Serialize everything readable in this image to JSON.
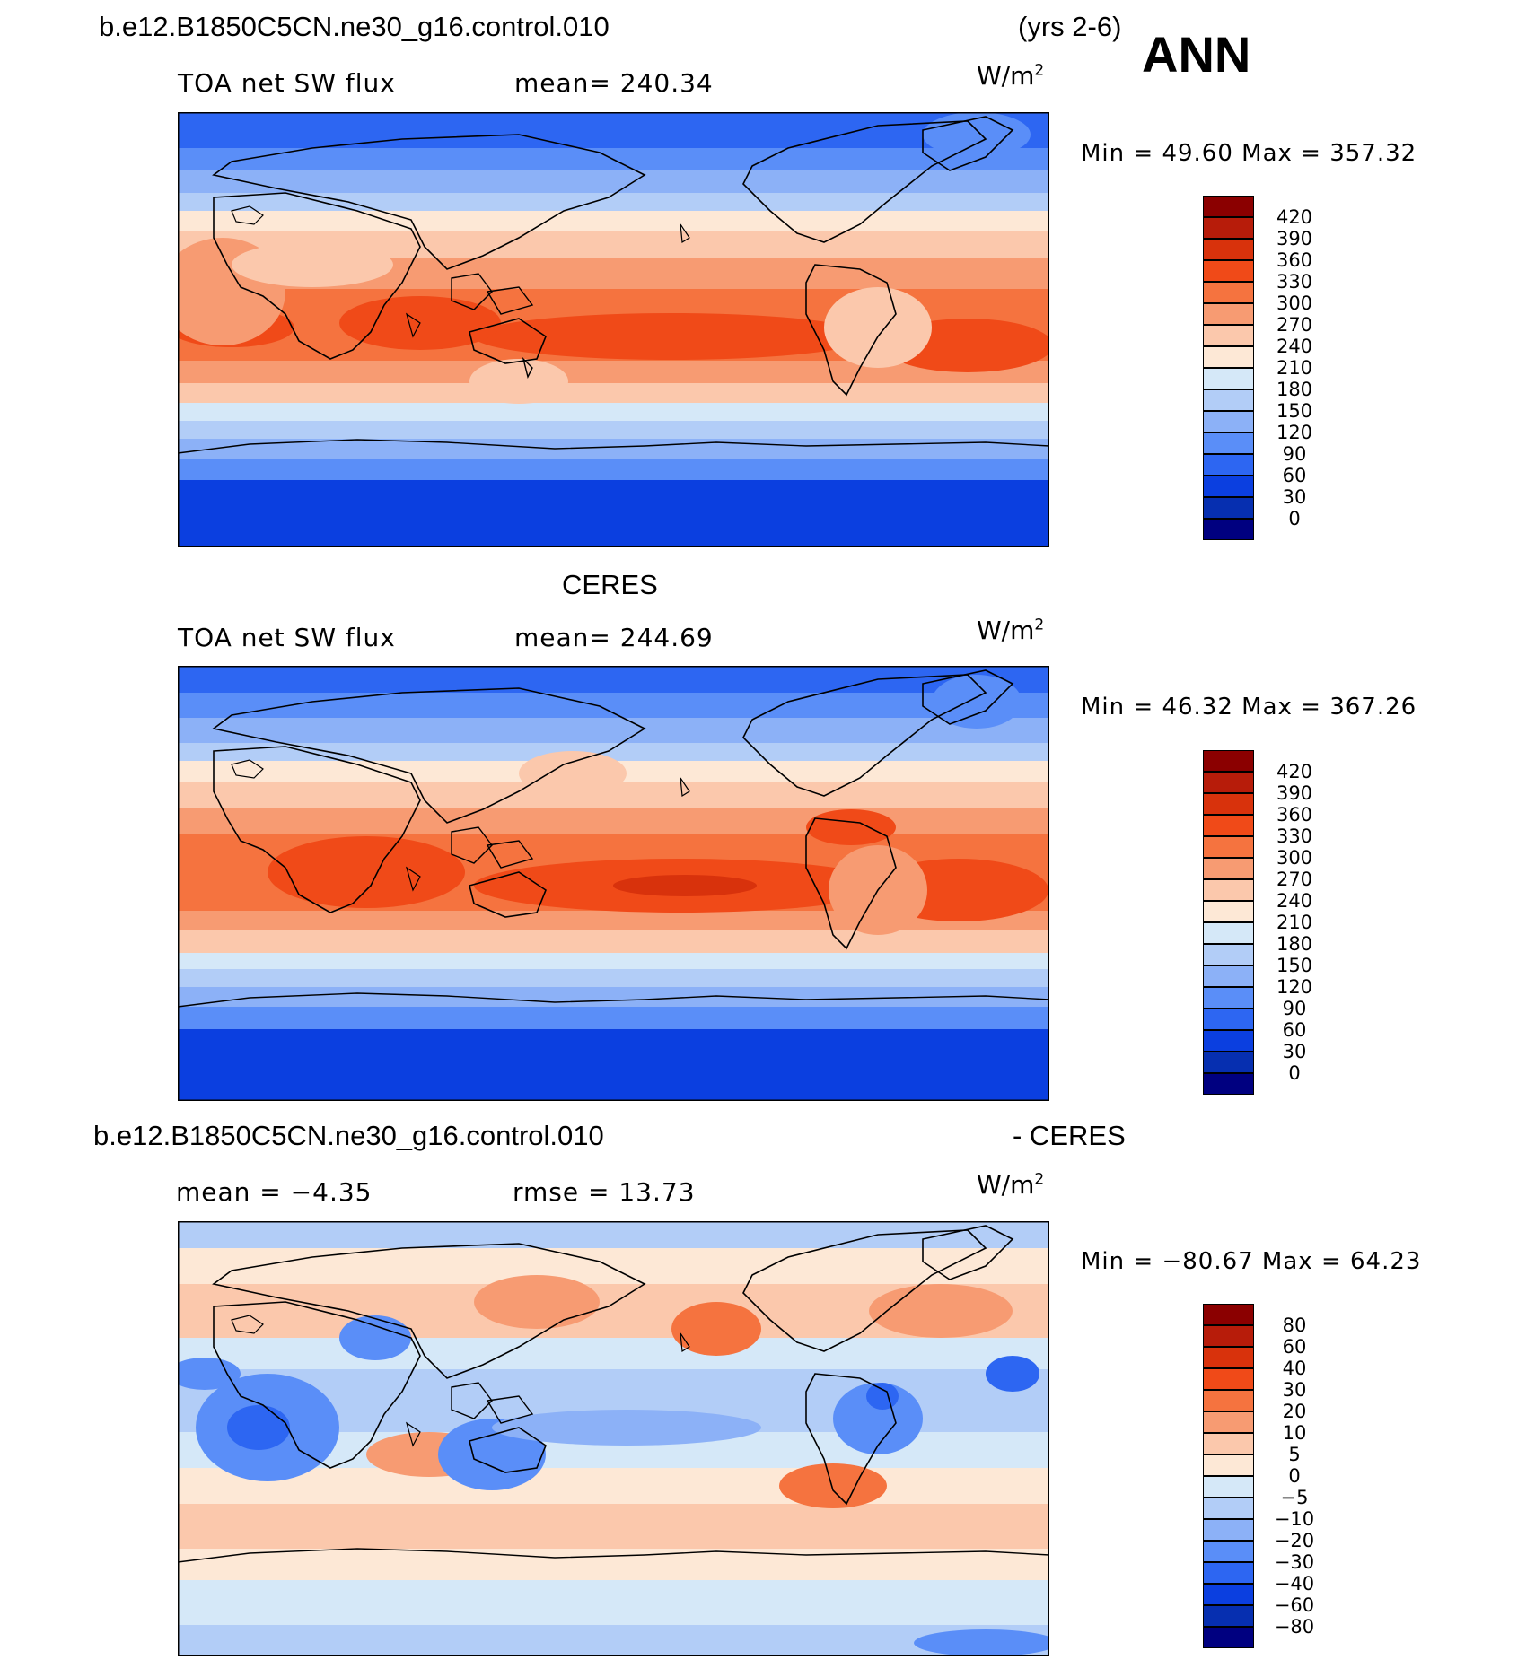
{
  "header": {
    "case": "b.e12.B1850C5CN.ne30_g16.control.010",
    "years": "(yrs 2-6)",
    "season": "ANN"
  },
  "panels": [
    {
      "id": "model",
      "title": "",
      "left_label": "TOA net SW flux",
      "mid_label": "mean= 240.34",
      "units": "W/m",
      "units_sup": "2",
      "minmax": "Min =   49.60 Max =  357.32",
      "levels": [
        "420",
        "390",
        "360",
        "330",
        "300",
        "270",
        "240",
        "210",
        "180",
        "150",
        "120",
        "90",
        "60",
        "30",
        "0"
      ],
      "colors": [
        "#8b0000",
        "#b71c0a",
        "#d8320c",
        "#f04a18",
        "#f5733f",
        "#f79b72",
        "#fbc8ac",
        "#fde8d6",
        "#d5e8f8",
        "#b2cdf7",
        "#8cb1f7",
        "#5a8ef8",
        "#2d66f2",
        "#0b3fe0",
        "#062fb0",
        "#000080"
      ]
    },
    {
      "id": "obs",
      "title": "CERES",
      "left_label": "TOA net SW flux",
      "mid_label": "mean= 244.69",
      "units": "W/m",
      "units_sup": "2",
      "minmax": "Min =   46.32 Max =  367.26",
      "levels": [
        "420",
        "390",
        "360",
        "330",
        "300",
        "270",
        "240",
        "210",
        "180",
        "150",
        "120",
        "90",
        "60",
        "30",
        "0"
      ],
      "colors": [
        "#8b0000",
        "#b71c0a",
        "#d8320c",
        "#f04a18",
        "#f5733f",
        "#f79b72",
        "#fbc8ac",
        "#fde8d6",
        "#d5e8f8",
        "#b2cdf7",
        "#8cb1f7",
        "#5a8ef8",
        "#2d66f2",
        "#0b3fe0",
        "#062fb0",
        "#000080"
      ]
    },
    {
      "id": "diff",
      "title_left": "b.e12.B1850C5CN.ne30_g16.control.010",
      "title_right": "- CERES",
      "left_label": "mean =   −4.35",
      "mid_label": "rmse =   13.73",
      "units": "W/m",
      "units_sup": "2",
      "minmax": "Min = −80.67 Max =   64.23",
      "levels": [
        "80",
        "60",
        "40",
        "30",
        "20",
        "10",
        "5",
        "0",
        "−5",
        "−10",
        "−20",
        "−30",
        "−40",
        "−60",
        "−80"
      ],
      "colors": [
        "#8b0000",
        "#b71c0a",
        "#d8320c",
        "#f04a18",
        "#f5733f",
        "#f79b72",
        "#fbc8ac",
        "#fde8d6",
        "#d5e8f8",
        "#b2cdf7",
        "#8cb1f7",
        "#5a8ef8",
        "#2d66f2",
        "#0b3fe0",
        "#062fb0",
        "#000080"
      ]
    }
  ]
}
